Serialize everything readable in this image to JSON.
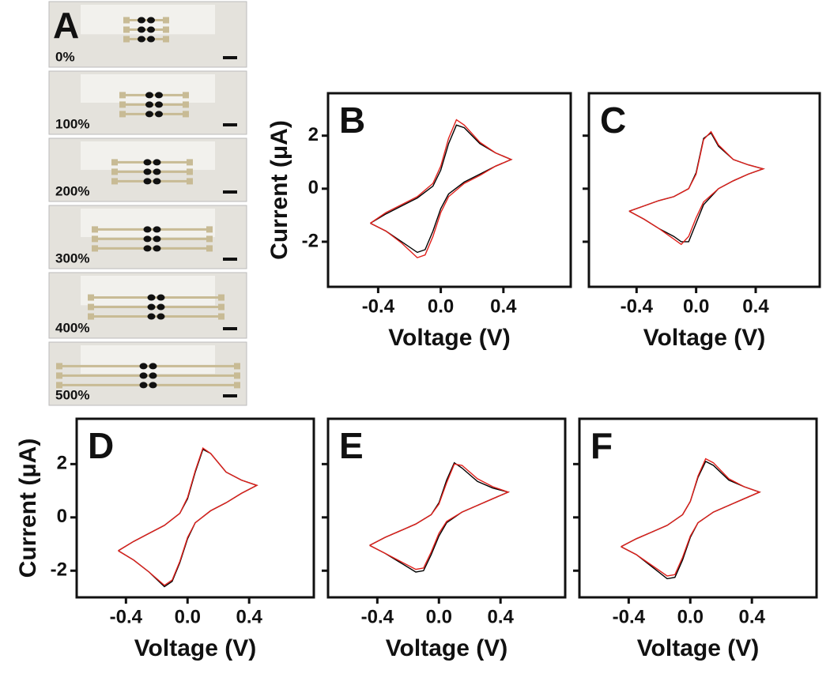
{
  "panel_a": {
    "label": "A",
    "strains": [
      "0%",
      "100%",
      "200%",
      "300%",
      "400%",
      "500%"
    ]
  },
  "chart_data": [
    {
      "type": "line",
      "title": "B",
      "x_label": "Voltage (V)",
      "y_label": "Current (μA)",
      "ytick_labels": true,
      "x": [
        -0.45,
        -0.35,
        -0.25,
        -0.15,
        -0.05,
        0,
        0.05,
        0.1,
        0.15,
        0.25,
        0.35,
        0.45,
        0.35,
        0.25,
        0.15,
        0.05,
        0,
        -0.05,
        -0.1,
        -0.15,
        -0.25,
        -0.35,
        -0.45
      ],
      "series": [
        {
          "color": "#000000",
          "values": [
            -1.3,
            -0.95,
            -0.65,
            -0.35,
            0.1,
            0.7,
            1.7,
            2.4,
            2.3,
            1.7,
            1.35,
            1.1,
            0.85,
            0.55,
            0.25,
            -0.2,
            -0.75,
            -1.6,
            -2.3,
            -2.4,
            -2.0,
            -1.6,
            -1.3
          ]
        },
        {
          "color": "#e0201b",
          "values": [
            -1.3,
            -0.9,
            -0.6,
            -0.3,
            0.2,
            0.85,
            1.9,
            2.6,
            2.4,
            1.75,
            1.35,
            1.1,
            0.85,
            0.5,
            0.2,
            -0.3,
            -0.9,
            -1.8,
            -2.5,
            -2.6,
            -2.05,
            -1.6,
            -1.3
          ]
        }
      ],
      "xlim": [
        -0.72,
        0.83
      ],
      "ylim": [
        -3.7,
        3.6
      ],
      "xticks": [
        -0.4,
        {
          "value": 0,
          "label": "0.0"
        },
        0.4
      ],
      "yticks": [
        -2,
        0,
        2
      ]
    },
    {
      "type": "line",
      "title": "C",
      "x_label": "Voltage (V)",
      "ytick_labels": false,
      "x": [
        -0.45,
        -0.35,
        -0.25,
        -0.15,
        -0.05,
        0,
        0.05,
        0.1,
        0.15,
        0.25,
        0.35,
        0.45,
        0.35,
        0.25,
        0.15,
        0.05,
        0,
        -0.05,
        -0.1,
        -0.15,
        -0.25,
        -0.35,
        -0.45
      ],
      "series": [
        {
          "color": "#000000",
          "values": [
            -0.85,
            -0.65,
            -0.45,
            -0.3,
            0.0,
            0.6,
            1.9,
            2.1,
            1.6,
            1.1,
            0.9,
            0.75,
            0.55,
            0.3,
            0.0,
            -0.6,
            -1.3,
            -2.0,
            -2.0,
            -1.8,
            -1.5,
            -1.15,
            -0.85
          ]
        },
        {
          "color": "#e0201b",
          "values": [
            -0.85,
            -0.65,
            -0.45,
            -0.3,
            0.0,
            0.55,
            1.85,
            2.15,
            1.65,
            1.1,
            0.9,
            0.75,
            0.55,
            0.3,
            0.0,
            -0.5,
            -1.1,
            -1.8,
            -2.1,
            -1.9,
            -1.5,
            -1.15,
            -0.85
          ]
        }
      ],
      "xlim": [
        -0.72,
        0.83
      ],
      "ylim": [
        -3.7,
        3.6
      ],
      "xticks": [
        -0.4,
        {
          "value": 0,
          "label": "0.0"
        },
        0.4
      ],
      "yticks": [
        -2,
        0,
        2
      ]
    },
    {
      "type": "line",
      "title": "D",
      "x_label": "Voltage (V)",
      "y_label": "Current (μA)",
      "ytick_labels": true,
      "x": [
        -0.45,
        -0.35,
        -0.25,
        -0.15,
        -0.05,
        0,
        0.05,
        0.1,
        0.15,
        0.25,
        0.35,
        0.45,
        0.35,
        0.25,
        0.15,
        0.05,
        0,
        -0.05,
        -0.1,
        -0.15,
        -0.25,
        -0.35,
        -0.45
      ],
      "series": [
        {
          "color": "#000000",
          "values": [
            -1.25,
            -0.9,
            -0.6,
            -0.3,
            0.15,
            0.7,
            1.7,
            2.55,
            2.4,
            1.7,
            1.4,
            1.2,
            0.9,
            0.55,
            0.25,
            -0.2,
            -0.8,
            -1.7,
            -2.4,
            -2.6,
            -2.05,
            -1.6,
            -1.25
          ]
        },
        {
          "color": "#e0201b",
          "values": [
            -1.25,
            -0.9,
            -0.6,
            -0.3,
            0.15,
            0.75,
            1.75,
            2.6,
            2.4,
            1.7,
            1.4,
            1.2,
            0.9,
            0.55,
            0.25,
            -0.2,
            -0.75,
            -1.65,
            -2.35,
            -2.55,
            -2.05,
            -1.6,
            -1.25
          ]
        }
      ],
      "xlim": [
        -0.72,
        0.82
      ],
      "ylim": [
        -3.0,
        3.7
      ],
      "xticks": [
        -0.4,
        {
          "value": 0,
          "label": "0.0"
        },
        0.4
      ],
      "yticks": [
        -2,
        0,
        2
      ]
    },
    {
      "type": "line",
      "title": "E",
      "x_label": "Voltage (V)",
      "ytick_labels": false,
      "x": [
        -0.45,
        -0.35,
        -0.25,
        -0.15,
        -0.05,
        0,
        0.05,
        0.1,
        0.15,
        0.25,
        0.35,
        0.45,
        0.35,
        0.25,
        0.15,
        0.05,
        0,
        -0.05,
        -0.1,
        -0.15,
        -0.25,
        -0.35,
        -0.45
      ],
      "series": [
        {
          "color": "#000000",
          "values": [
            -1.05,
            -0.75,
            -0.5,
            -0.25,
            0.1,
            0.55,
            1.4,
            2.05,
            1.85,
            1.35,
            1.1,
            0.95,
            0.7,
            0.45,
            0.2,
            -0.2,
            -0.7,
            -1.4,
            -2.0,
            -2.05,
            -1.7,
            -1.35,
            -1.05
          ]
        },
        {
          "color": "#e0201b",
          "values": [
            -1.05,
            -0.75,
            -0.5,
            -0.25,
            0.1,
            0.5,
            1.3,
            2.0,
            1.95,
            1.45,
            1.15,
            0.95,
            0.7,
            0.45,
            0.2,
            -0.15,
            -0.6,
            -1.3,
            -1.9,
            -1.95,
            -1.65,
            -1.35,
            -1.05
          ]
        }
      ],
      "xlim": [
        -0.72,
        0.82
      ],
      "ylim": [
        -3.0,
        3.7
      ],
      "xticks": [
        -0.4,
        {
          "value": 0,
          "label": "0.0"
        },
        0.4
      ],
      "yticks": [
        -2,
        0,
        2
      ]
    },
    {
      "type": "line",
      "title": "F",
      "x_label": "Voltage (V)",
      "ytick_labels": false,
      "x": [
        -0.45,
        -0.35,
        -0.25,
        -0.15,
        -0.05,
        0,
        0.05,
        0.1,
        0.15,
        0.25,
        0.35,
        0.45,
        0.35,
        0.25,
        0.15,
        0.05,
        0,
        -0.05,
        -0.1,
        -0.15,
        -0.25,
        -0.35,
        -0.45
      ],
      "series": [
        {
          "color": "#000000",
          "values": [
            -1.1,
            -0.8,
            -0.55,
            -0.3,
            0.1,
            0.6,
            1.5,
            2.1,
            1.95,
            1.4,
            1.15,
            0.95,
            0.7,
            0.45,
            0.2,
            -0.2,
            -0.75,
            -1.6,
            -2.25,
            -2.3,
            -1.85,
            -1.4,
            -1.1
          ]
        },
        {
          "color": "#e0201b",
          "values": [
            -1.1,
            -0.8,
            -0.55,
            -0.3,
            0.1,
            0.6,
            1.55,
            2.2,
            2.05,
            1.45,
            1.15,
            0.95,
            0.7,
            0.45,
            0.2,
            -0.2,
            -0.7,
            -1.5,
            -2.15,
            -2.2,
            -1.8,
            -1.4,
            -1.1
          ]
        }
      ],
      "xlim": [
        -0.72,
        0.82
      ],
      "ylim": [
        -3.0,
        3.7
      ],
      "xticks": [
        -0.4,
        {
          "value": 0,
          "label": "0.0"
        },
        0.4
      ],
      "yticks": [
        -2,
        0,
        2
      ]
    }
  ]
}
